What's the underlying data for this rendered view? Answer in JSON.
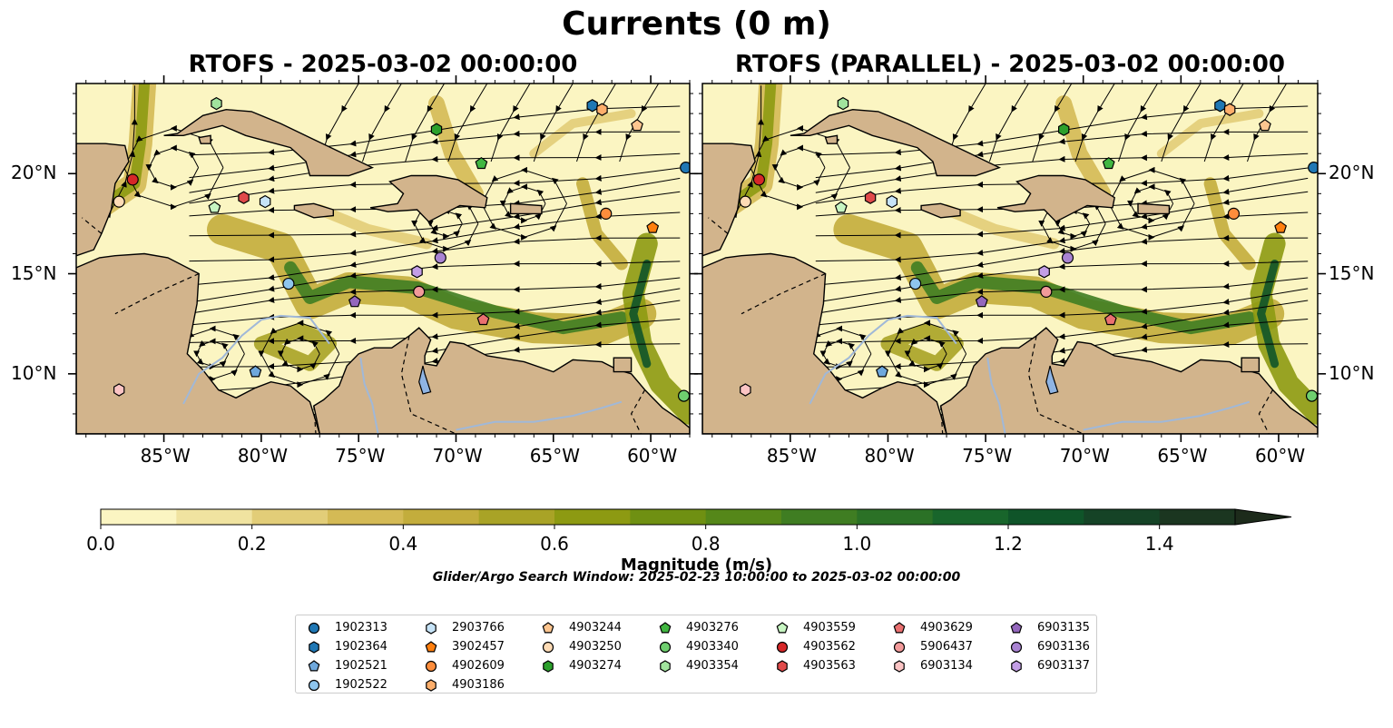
{
  "figure": {
    "suptitle": "Currents (0 m)",
    "search_window": "Glider/Argo Search Window: 2025-02-23 10:00:00 to 2025-03-02 00:00:00"
  },
  "chart_data": [
    {
      "type": "heatmap",
      "title": "RTOFS - 2025-03-02 00:00:00",
      "xlim": [
        -89.5,
        -58.0
      ],
      "ylim": [
        7.0,
        24.5
      ],
      "x_ticks": [
        "85°W",
        "80°W",
        "75°W",
        "70°W",
        "65°W",
        "60°W"
      ],
      "y_ticks": [
        "20°N",
        "15°N",
        "10°N"
      ],
      "variable": "surface current magnitude with streamlines",
      "colorbar_label": "Magnitude (m/s)",
      "colorbar_ticks": [
        "0.0",
        "0.2",
        "0.4",
        "0.6",
        "0.8",
        "1.0",
        "1.2",
        "1.4"
      ],
      "vmin": 0.0,
      "vmax": 1.5,
      "observations": [
        {
          "id": "1902313",
          "lon": -58.2,
          "lat": 20.3
        },
        {
          "id": "1902364",
          "lon": -63.0,
          "lat": 23.4
        },
        {
          "id": "1902521",
          "lon": -80.3,
          "lat": 10.1
        },
        {
          "id": "1902522",
          "lon": -78.6,
          "lat": 14.5
        },
        {
          "id": "2903766",
          "lon": -79.8,
          "lat": 18.6
        },
        {
          "id": "3902457",
          "lon": -59.9,
          "lat": 17.3
        },
        {
          "id": "4902609",
          "lon": -62.3,
          "lat": 18.0
        },
        {
          "id": "4903186",
          "lon": -62.5,
          "lat": 23.2
        },
        {
          "id": "4903244",
          "lon": -60.7,
          "lat": 22.4
        },
        {
          "id": "4903250",
          "lon": -87.3,
          "lat": 18.6
        },
        {
          "id": "4903274",
          "lon": -71.0,
          "lat": 22.2
        },
        {
          "id": "4903276",
          "lon": -68.7,
          "lat": 20.5
        },
        {
          "id": "4903340",
          "lon": -58.3,
          "lat": 8.9
        },
        {
          "id": "4903354",
          "lon": -82.3,
          "lat": 23.5
        },
        {
          "id": "4903559",
          "lon": -82.4,
          "lat": 18.3
        },
        {
          "id": "4903562",
          "lon": -86.6,
          "lat": 19.7
        },
        {
          "id": "4903563",
          "lon": -80.9,
          "lat": 18.8
        },
        {
          "id": "4903629",
          "lon": -68.6,
          "lat": 12.7
        },
        {
          "id": "5906437",
          "lon": -71.9,
          "lat": 14.1
        },
        {
          "id": "6903134",
          "lon": -87.3,
          "lat": 9.2
        },
        {
          "id": "6903135",
          "lon": -75.2,
          "lat": 13.6
        },
        {
          "id": "6903136",
          "lon": -70.8,
          "lat": 15.8
        },
        {
          "id": "6903137",
          "lon": -72.0,
          "lat": 15.1
        }
      ]
    },
    {
      "type": "heatmap",
      "title": "RTOFS (PARALLEL) - 2025-03-02 00:00:00",
      "xlim": [
        -89.5,
        -58.0
      ],
      "ylim": [
        7.0,
        24.5
      ],
      "x_ticks": [
        "85°W",
        "80°W",
        "75°W",
        "70°W",
        "65°W",
        "60°W"
      ],
      "y_ticks": [
        "20°N",
        "15°N",
        "10°N"
      ],
      "variable": "surface current magnitude with streamlines",
      "observations": "same as first panel"
    }
  ],
  "legend": {
    "columns": [
      [
        {
          "id": "1902313",
          "marker": "circle",
          "color": "#1f77b4"
        },
        {
          "id": "1902364",
          "marker": "hexagon",
          "color": "#1f77b4"
        },
        {
          "id": "1902521",
          "marker": "pentagon",
          "color": "#6fa8dc"
        },
        {
          "id": "1902522",
          "marker": "circle",
          "color": "#8ec5ee"
        }
      ],
      [
        {
          "id": "2903766",
          "marker": "hexagon",
          "color": "#c6e3f7"
        },
        {
          "id": "3902457",
          "marker": "pentagon",
          "color": "#ff7f0e"
        },
        {
          "id": "4902609",
          "marker": "circle",
          "color": "#fd8d3c"
        },
        {
          "id": "4903186",
          "marker": "hexagon",
          "color": "#fdae6b"
        }
      ],
      [
        {
          "id": "4903244",
          "marker": "pentagon",
          "color": "#fdc58f"
        },
        {
          "id": "4903250",
          "marker": "circle",
          "color": "#fddbb5"
        },
        {
          "id": "4903274",
          "marker": "hexagon",
          "color": "#2ca02c"
        }
      ],
      [
        {
          "id": "4903276",
          "marker": "pentagon",
          "color": "#41b641"
        },
        {
          "id": "4903340",
          "marker": "circle",
          "color": "#6fcf6f"
        },
        {
          "id": "4903354",
          "marker": "hexagon",
          "color": "#a1e39d"
        }
      ],
      [
        {
          "id": "4903559",
          "marker": "pentagon",
          "color": "#c7f5c2"
        },
        {
          "id": "4903562",
          "marker": "circle",
          "color": "#d62728"
        },
        {
          "id": "4903563",
          "marker": "hexagon",
          "color": "#e04a4a"
        }
      ],
      [
        {
          "id": "4903629",
          "marker": "pentagon",
          "color": "#ea7070"
        },
        {
          "id": "5906437",
          "marker": "circle",
          "color": "#f29a9a"
        },
        {
          "id": "6903134",
          "marker": "hexagon",
          "color": "#fbc4c4"
        }
      ],
      [
        {
          "id": "6903135",
          "marker": "pentagon",
          "color": "#9467bd"
        },
        {
          "id": "6903136",
          "marker": "circle",
          "color": "#a983d2"
        },
        {
          "id": "6903137",
          "marker": "hexagon",
          "color": "#c39ee6"
        }
      ]
    ]
  },
  "colors": {
    "land": "#d2b48c",
    "lake": "#8fb4e3",
    "river": "#a0b8d8",
    "colormap": [
      "#fbf5c2",
      "#f0e3a0",
      "#e2cd78",
      "#d4ba55",
      "#c3ad3c",
      "#a9a326",
      "#8d9a12",
      "#6f9012",
      "#558719",
      "#3f7d22",
      "#2b7126",
      "#18652b",
      "#0f5429",
      "#154326",
      "#1b3620",
      "#1d2b1b"
    ]
  }
}
